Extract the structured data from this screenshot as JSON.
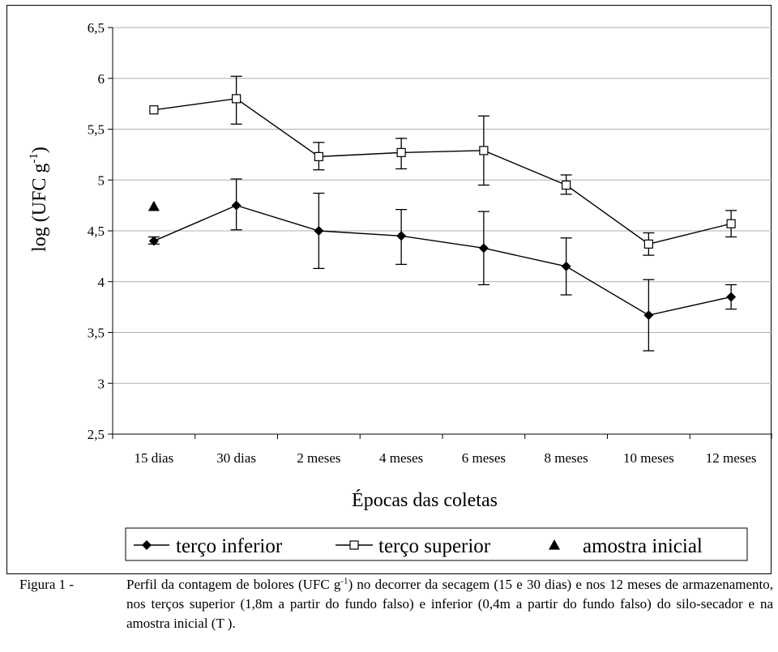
{
  "chart_data": {
    "type": "line",
    "categories": [
      "15 dias",
      "30 dias",
      "2 meses",
      "4 meses",
      "6 meses",
      "8 meses",
      "10 meses",
      "12 meses"
    ],
    "ylabel": "log (UFC g",
    "ylabel_sup": "-1",
    "ylabel_close": ")",
    "xlabel": "Épocas das coletas",
    "ylim": [
      2.5,
      6.5
    ],
    "yticks": [
      2.5,
      3,
      3.5,
      4,
      4.5,
      5,
      5.5,
      6,
      6.5
    ],
    "ytick_labels": [
      "2,5",
      "3",
      "3,5",
      "4",
      "4,5",
      "5",
      "5,5",
      "6",
      "6,5"
    ],
    "grid": true,
    "legend_position": "bottom",
    "series": [
      {
        "name": "terço inferior",
        "marker": "filled-diamond",
        "values": [
          4.4,
          4.75,
          4.5,
          4.45,
          4.33,
          4.15,
          3.67,
          3.85
        ],
        "err_low": [
          4.37,
          4.51,
          4.13,
          4.17,
          3.97,
          3.87,
          3.32,
          3.73
        ],
        "err_high": [
          4.44,
          5.01,
          4.87,
          4.71,
          4.69,
          4.43,
          4.02,
          3.97
        ]
      },
      {
        "name": "terço superior",
        "marker": "open-square",
        "values": [
          5.69,
          5.8,
          5.23,
          5.27,
          5.29,
          4.95,
          4.37,
          4.57
        ],
        "err_low": null,
        "err_high": null,
        "err_low_values": [
          null,
          5.55,
          5.1,
          5.11,
          4.95,
          4.86,
          4.26,
          4.44
        ],
        "err_high_values": [
          null,
          6.02,
          5.37,
          5.41,
          5.63,
          5.05,
          4.48,
          4.7
        ]
      },
      {
        "name": "amostra inicial",
        "marker": "filled-triangle",
        "points": [
          {
            "category": "15 dias",
            "value": 4.74
          }
        ]
      }
    ]
  },
  "caption": {
    "lead": "Figura 1 - ",
    "text_a": "Perfil da contagem de bolores (UFC g",
    "text_sup": "-1",
    "text_b": ") no decorrer da secagem (15 e 30 dias) e nos 12 meses de armazenamento, nos terços superior (1,8m a partir do fundo falso) e inferior (0,4m a partir do fundo falso) do silo-secador e na amostra inicial (T )."
  }
}
